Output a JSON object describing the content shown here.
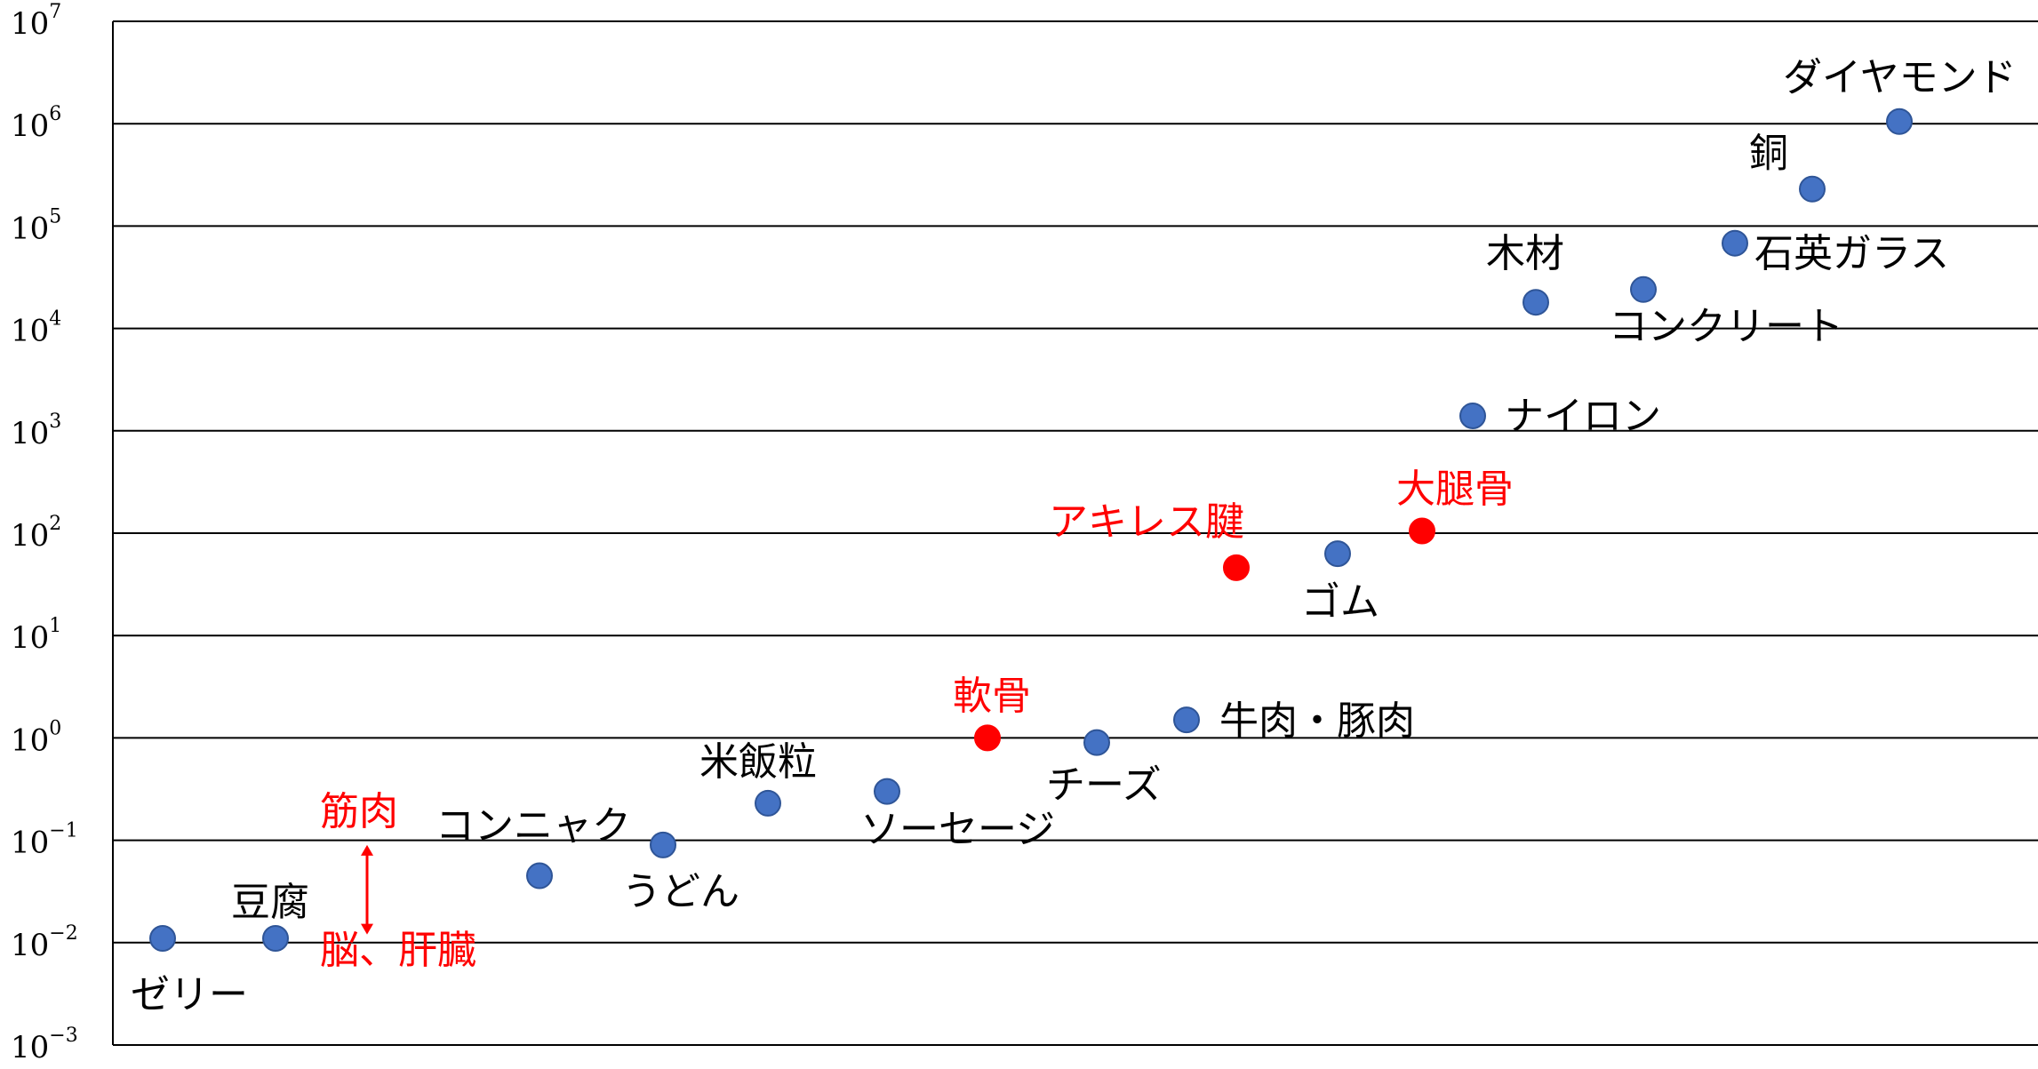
{
  "chart_data": {
    "type": "scatter",
    "yscale": "log",
    "ylim": [
      0.001,
      10000000
    ],
    "yticks": [
      {
        "base": "10",
        "exp": "−3"
      },
      {
        "base": "10",
        "exp": "−2"
      },
      {
        "base": "10",
        "exp": "−1"
      },
      {
        "base": "10",
        "exp": "0"
      },
      {
        "base": "10",
        "exp": "1"
      },
      {
        "base": "10",
        "exp": "2"
      },
      {
        "base": "10",
        "exp": "3"
      },
      {
        "base": "10",
        "exp": "4"
      },
      {
        "base": "10",
        "exp": "5"
      },
      {
        "base": "10",
        "exp": "6"
      },
      {
        "base": "10",
        "exp": "7"
      }
    ],
    "grid": true,
    "colors": {
      "default": "#4472c4",
      "highlight": "#ff0000",
      "grid": "#000000"
    },
    "points": [
      {
        "label": "ゼリー",
        "y": 0.011,
        "color": "#4472c4"
      },
      {
        "label": "豆腐",
        "y": 0.011,
        "color": "#4472c4"
      },
      {
        "label": "コンニャク",
        "y": 0.045,
        "color": "#4472c4"
      },
      {
        "label": "うどん",
        "y": 0.09,
        "color": "#4472c4"
      },
      {
        "label": "米飯粒",
        "y": 0.23,
        "color": "#4472c4"
      },
      {
        "label": "ソーセージ",
        "y": 0.3,
        "color": "#4472c4"
      },
      {
        "label": "軟骨",
        "y": 1.0,
        "color": "#ff0000"
      },
      {
        "label": "チーズ",
        "y": 0.9,
        "color": "#4472c4"
      },
      {
        "label": "牛肉・豚肉",
        "y": 1.5,
        "color": "#4472c4"
      },
      {
        "label": "アキレス腱",
        "y": 46,
        "color": "#ff0000"
      },
      {
        "label": "ゴム",
        "y": 63,
        "color": "#4472c4"
      },
      {
        "label": "大腿骨",
        "y": 105,
        "color": "#ff0000"
      },
      {
        "label": "ナイロン",
        "y": 1400,
        "color": "#4472c4"
      },
      {
        "label": "木材",
        "y": 18000,
        "color": "#4472c4"
      },
      {
        "label": "コンクリート",
        "y": 24000,
        "color": "#4472c4"
      },
      {
        "label": "石英ガラス",
        "y": 68000,
        "color": "#4472c4"
      },
      {
        "label": "銅",
        "y": 230000,
        "color": "#4472c4"
      },
      {
        "label": "ダイヤモンド",
        "y": 1050000,
        "color": "#4472c4"
      }
    ],
    "annotations": [
      {
        "text": "筋肉",
        "color": "#ff0000"
      },
      {
        "text": "脳、肝臓",
        "color": "#ff0000"
      }
    ],
    "annotation_range": {
      "from": 0.012,
      "to": 0.09
    }
  }
}
